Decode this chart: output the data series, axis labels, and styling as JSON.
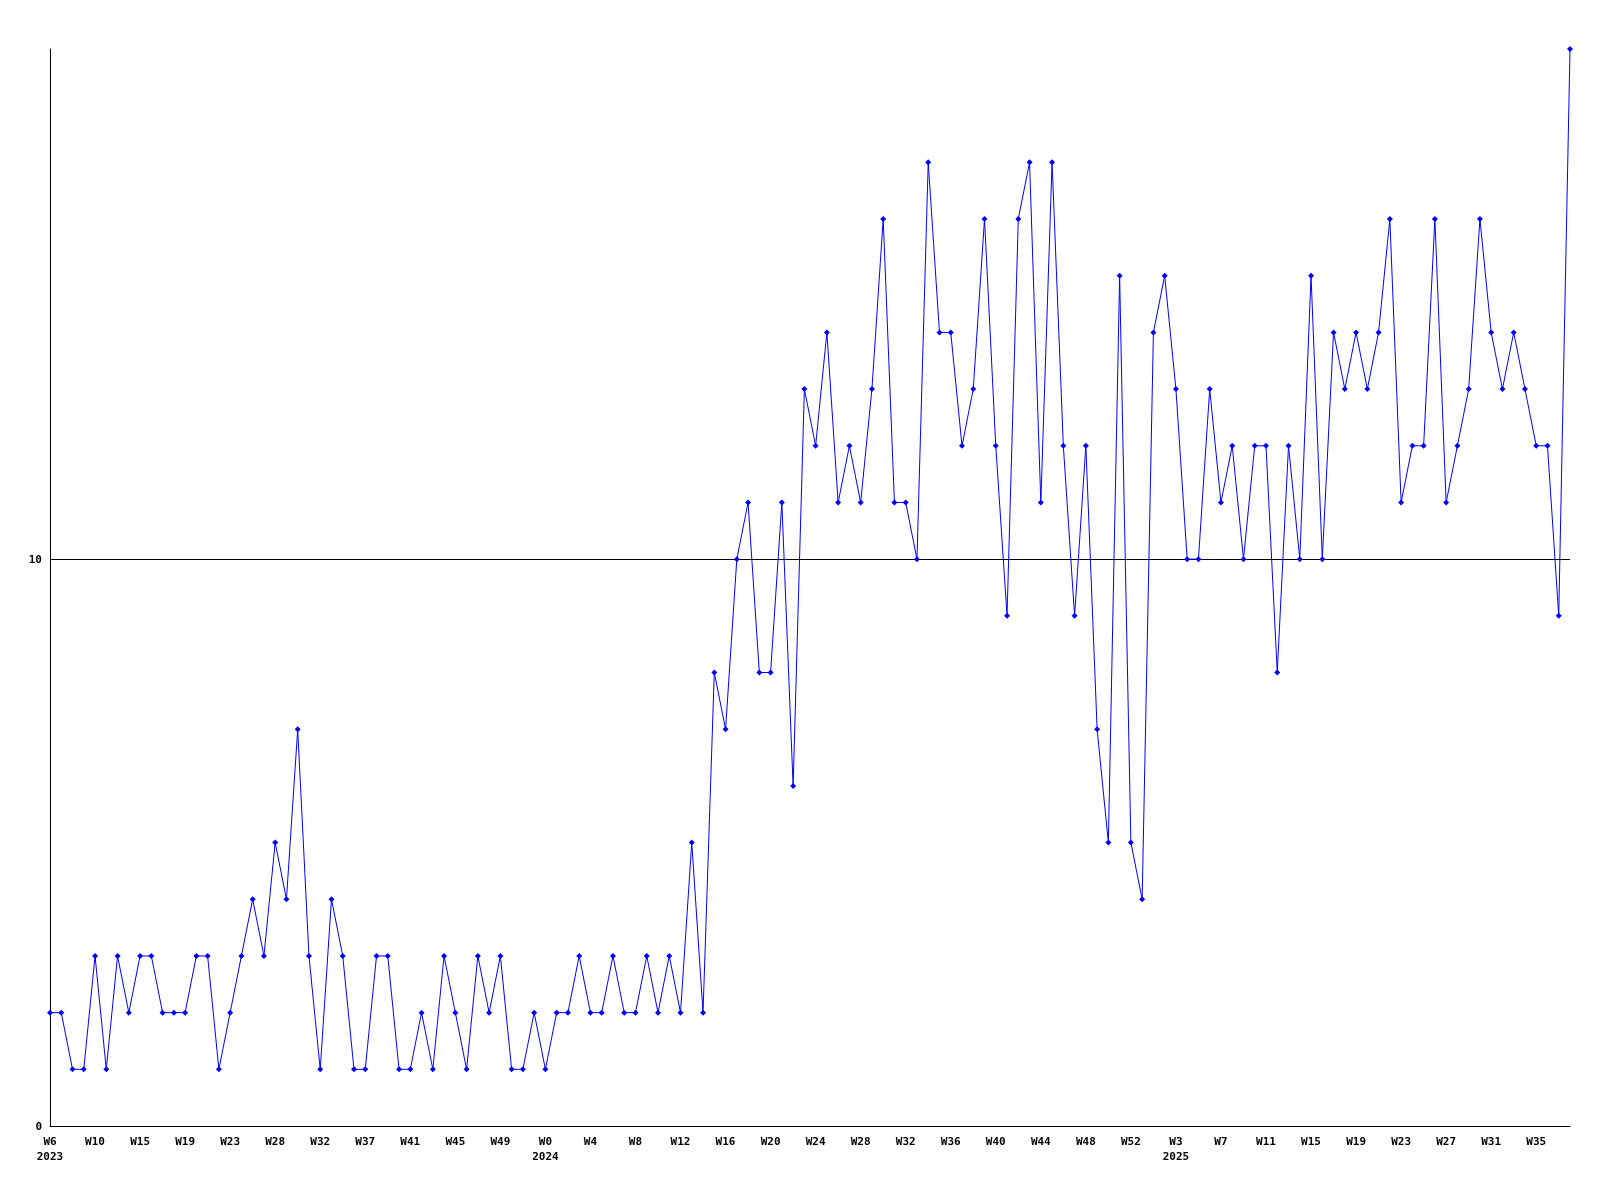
{
  "chart_data": {
    "type": "line",
    "categories": [
      "W6\n2023",
      null,
      null,
      null,
      "W10",
      null,
      null,
      null,
      "W15",
      null,
      null,
      null,
      "W19",
      null,
      null,
      null,
      "W23",
      null,
      null,
      null,
      "W28",
      null,
      null,
      null,
      "W32",
      null,
      null,
      null,
      "W37",
      null,
      null,
      null,
      "W41",
      null,
      null,
      null,
      "W45",
      null,
      null,
      null,
      "W49",
      null,
      null,
      null,
      "W0\n2024",
      null,
      null,
      null,
      "W4",
      null,
      null,
      null,
      "W8",
      null,
      null,
      null,
      "W12",
      null,
      null,
      null,
      "W16",
      null,
      null,
      null,
      "W20",
      null,
      null,
      null,
      "W24",
      null,
      null,
      null,
      "W28",
      null,
      null,
      null,
      "W32",
      null,
      null,
      null,
      "W36",
      null,
      null,
      null,
      "W40",
      null,
      null,
      null,
      "W44",
      null,
      null,
      null,
      "W48",
      null,
      null,
      null,
      "W52",
      null,
      null,
      null,
      "W3\n2025",
      null,
      null,
      null,
      "W7",
      null,
      null,
      null,
      "W11",
      null,
      null,
      null,
      "W15",
      null,
      null,
      null,
      "W19",
      null,
      null,
      null,
      "W23",
      null,
      null,
      null,
      "W27",
      null,
      null,
      null,
      "W31",
      null,
      null,
      null,
      "W35",
      null,
      null,
      null
    ],
    "series": [
      {
        "color": "#0000ff",
        "values": [
          2,
          2,
          1,
          1,
          3,
          1,
          3,
          2,
          3,
          3,
          2,
          2,
          2,
          3,
          3,
          1,
          2,
          3,
          4,
          3,
          5,
          4,
          7,
          3,
          1,
          4,
          3,
          1,
          1,
          3,
          3,
          1,
          1,
          2,
          1,
          3,
          2,
          1,
          3,
          2,
          3,
          1,
          1,
          2,
          1,
          2,
          2,
          3,
          2,
          2,
          3,
          2,
          2,
          3,
          2,
          3,
          2,
          5,
          2,
          8,
          7,
          10,
          11,
          8,
          8,
          11,
          6,
          13,
          12,
          14,
          11,
          12,
          11,
          13,
          16,
          11,
          11,
          10,
          17,
          14,
          14,
          12,
          13,
          16,
          12,
          9,
          16,
          17,
          11,
          17,
          12,
          9,
          12,
          7,
          5,
          15,
          5,
          4,
          14,
          15,
          13,
          10,
          10,
          13,
          11,
          12,
          10,
          12,
          12,
          8,
          12,
          10,
          15,
          10,
          14,
          13,
          14,
          13,
          14,
          16,
          11,
          12,
          12,
          16,
          11,
          12,
          13,
          16,
          14,
          13,
          14,
          13,
          12,
          12,
          9,
          19
        ]
      }
    ],
    "ylim": [
      0,
      19
    ],
    "yticks": [
      0,
      10
    ],
    "grid": "y",
    "marker": "diamond",
    "line_style": "solid"
  }
}
